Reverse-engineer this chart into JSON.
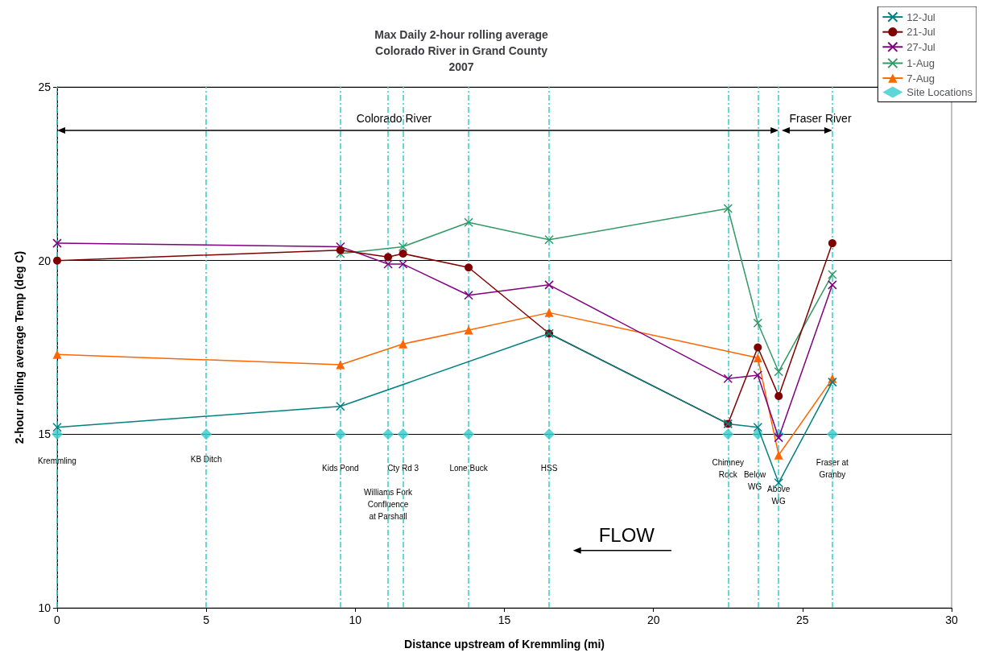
{
  "chart_data": {
    "type": "line",
    "title": "Max Daily 2-hour rolling average\nColorado River in Grand County\n2007",
    "xlabel": "Distance upstream of Kremmling (mi)",
    "ylabel": "2-hour rolling average Temp (deg C)",
    "xlim": [
      0,
      30
    ],
    "xticks": [
      0,
      5,
      10,
      15,
      20,
      25,
      30
    ],
    "ylim": [
      10,
      25
    ],
    "yticks": [
      10,
      15,
      20,
      25
    ],
    "grid": "y",
    "legend": "top right",
    "line_style": "solid",
    "series": [
      {
        "name": "12-Jul",
        "color": "#008080",
        "marker": "cross",
        "x": [
          0,
          9.5,
          16.5,
          22.5,
          23.5,
          24.2,
          26
        ],
        "values": [
          15.2,
          15.8,
          17.9,
          15.3,
          15.2,
          13.6,
          16.5
        ]
      },
      {
        "name": "21-Jul",
        "color": "#800000",
        "marker": "circle",
        "x": [
          0,
          9.5,
          11.1,
          11.6,
          13.8,
          16.5,
          22.5,
          23.5,
          24.2,
          26
        ],
        "values": [
          20.0,
          20.3,
          20.1,
          20.2,
          19.8,
          17.9,
          15.3,
          17.5,
          16.1,
          20.5
        ]
      },
      {
        "name": "27-Jul",
        "color": "#800080",
        "marker": "cross",
        "x": [
          0,
          9.5,
          11.1,
          11.6,
          13.8,
          16.5,
          22.5,
          23.5,
          24.2,
          26
        ],
        "values": [
          20.5,
          20.4,
          19.9,
          19.9,
          19.0,
          19.3,
          16.6,
          16.7,
          14.9,
          19.3
        ]
      },
      {
        "name": "1-Aug",
        "color": "#339966",
        "marker": "cross",
        "x": [
          9.5,
          11.6,
          13.8,
          16.5,
          22.5,
          23.5,
          24.2,
          26
        ],
        "values": [
          20.2,
          20.4,
          21.1,
          20.6,
          21.5,
          18.2,
          16.8,
          19.6
        ]
      },
      {
        "name": "7-Aug",
        "color": "#ff6600",
        "marker": "triangle",
        "x": [
          0,
          9.5,
          11.6,
          13.8,
          16.5,
          23.5,
          24.2,
          26
        ],
        "values": [
          17.3,
          17.0,
          17.6,
          18.0,
          18.5,
          17.2,
          14.4,
          16.6
        ]
      },
      {
        "name": "Site Locations",
        "type": "scatter",
        "color": "#33cccc",
        "marker": "diamond",
        "x": [
          0,
          5,
          9.5,
          11.1,
          11.6,
          13.8,
          16.5,
          22.5,
          23.5,
          24.2,
          26
        ],
        "values": [
          15,
          15,
          15,
          15,
          15,
          15,
          15,
          15,
          15,
          15,
          15
        ]
      }
    ],
    "ref_lines": [
      {
        "axis": "x",
        "value": 0,
        "color": "#33cccc",
        "line_style": "dashed"
      },
      {
        "axis": "x",
        "value": 5,
        "color": "#33cccc",
        "line_style": "dashed"
      },
      {
        "axis": "x",
        "value": 9.5,
        "color": "#33cccc",
        "line_style": "dashed"
      },
      {
        "axis": "x",
        "value": 11.1,
        "color": "#33cccc",
        "line_style": "dashed"
      },
      {
        "axis": "x",
        "value": 11.6,
        "color": "#33cccc",
        "line_style": "dashed"
      },
      {
        "axis": "x",
        "value": 13.8,
        "color": "#33cccc",
        "line_style": "dashed"
      },
      {
        "axis": "x",
        "value": 16.5,
        "color": "#33cccc",
        "line_style": "dashed"
      },
      {
        "axis": "x",
        "value": 22.5,
        "color": "#33cccc",
        "line_style": "dashed"
      },
      {
        "axis": "x",
        "value": 23.5,
        "color": "#33cccc",
        "line_style": "dashed"
      },
      {
        "axis": "x",
        "value": 24.2,
        "color": "#33cccc",
        "line_style": "dashed"
      },
      {
        "axis": "x",
        "value": 26,
        "color": "#33cccc",
        "line_style": "dashed"
      }
    ],
    "annotations": [
      {
        "text": "Kremmling",
        "x": 0,
        "y": 14.4
      },
      {
        "text": "KB Ditch",
        "x": 5,
        "y": 14.45
      },
      {
        "text": "Kids Pond",
        "x": 9.5,
        "y": 14.2
      },
      {
        "text": "Williams Fork\nConfluence\nat Parshall",
        "x": 11.1,
        "y": 13.5
      },
      {
        "text": "Cty Rd 3",
        "x": 11.6,
        "y": 14.2
      },
      {
        "text": "Lone Buck",
        "x": 13.8,
        "y": 14.2
      },
      {
        "text": "HSS",
        "x": 16.5,
        "y": 14.2
      },
      {
        "text": "Chimney\nRock",
        "x": 22.5,
        "y": 14.35
      },
      {
        "text": "Below\nWG",
        "x": 23.4,
        "y": 14.0
      },
      {
        "text": "Above\nWG",
        "x": 24.2,
        "y": 13.6
      },
      {
        "text": "Fraser at\nGranby",
        "x": 26,
        "y": 14.35
      },
      "Colorado River",
      "Fraser River",
      "FLOW"
    ]
  }
}
